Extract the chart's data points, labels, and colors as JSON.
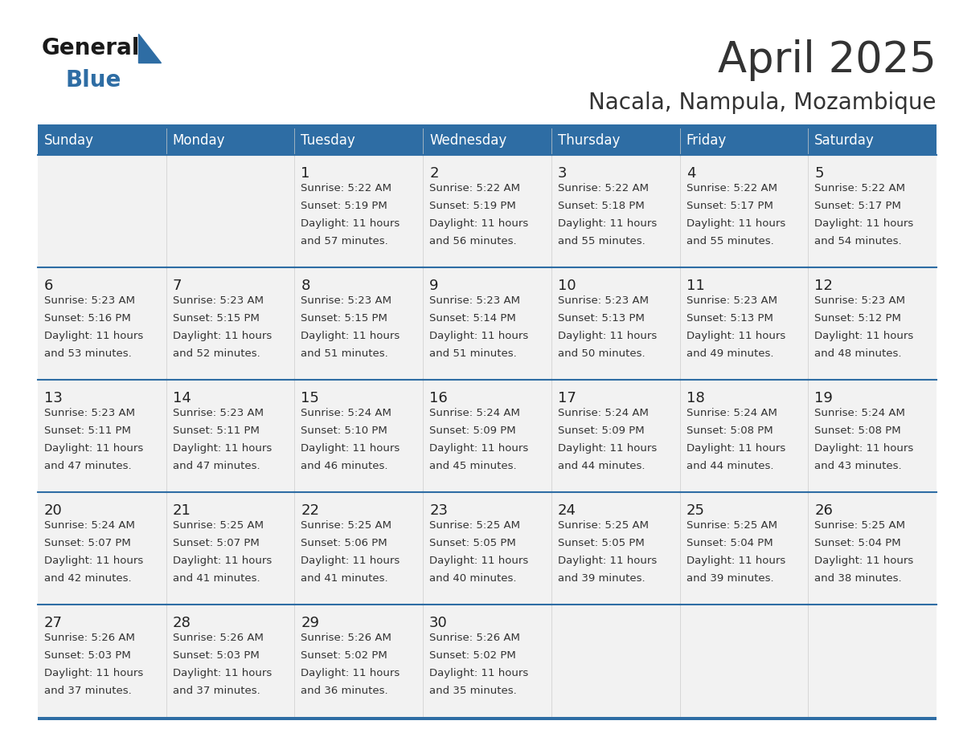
{
  "title": "April 2025",
  "subtitle": "Nacala, Nampula, Mozambique",
  "header_bg": "#2E6DA4",
  "header_text_color": "#FFFFFF",
  "cell_bg": "#F2F2F2",
  "border_color": "#2E6DA4",
  "text_color": "#333333",
  "day_number_color": "#222222",
  "logo_general_color": "#1a1a1a",
  "logo_blue_color": "#2E6DA4",
  "day_names": [
    "Sunday",
    "Monday",
    "Tuesday",
    "Wednesday",
    "Thursday",
    "Friday",
    "Saturday"
  ],
  "calendar_data": [
    [
      {
        "day": "",
        "sunrise": "",
        "sunset": "",
        "daylight": ""
      },
      {
        "day": "",
        "sunrise": "",
        "sunset": "",
        "daylight": ""
      },
      {
        "day": "1",
        "sunrise": "5:22 AM",
        "sunset": "5:19 PM",
        "daylight": "11 hours and 57 minutes."
      },
      {
        "day": "2",
        "sunrise": "5:22 AM",
        "sunset": "5:19 PM",
        "daylight": "11 hours and 56 minutes."
      },
      {
        "day": "3",
        "sunrise": "5:22 AM",
        "sunset": "5:18 PM",
        "daylight": "11 hours and 55 minutes."
      },
      {
        "day": "4",
        "sunrise": "5:22 AM",
        "sunset": "5:17 PM",
        "daylight": "11 hours and 55 minutes."
      },
      {
        "day": "5",
        "sunrise": "5:22 AM",
        "sunset": "5:17 PM",
        "daylight": "11 hours and 54 minutes."
      }
    ],
    [
      {
        "day": "6",
        "sunrise": "5:23 AM",
        "sunset": "5:16 PM",
        "daylight": "11 hours and 53 minutes."
      },
      {
        "day": "7",
        "sunrise": "5:23 AM",
        "sunset": "5:15 PM",
        "daylight": "11 hours and 52 minutes."
      },
      {
        "day": "8",
        "sunrise": "5:23 AM",
        "sunset": "5:15 PM",
        "daylight": "11 hours and 51 minutes."
      },
      {
        "day": "9",
        "sunrise": "5:23 AM",
        "sunset": "5:14 PM",
        "daylight": "11 hours and 51 minutes."
      },
      {
        "day": "10",
        "sunrise": "5:23 AM",
        "sunset": "5:13 PM",
        "daylight": "11 hours and 50 minutes."
      },
      {
        "day": "11",
        "sunrise": "5:23 AM",
        "sunset": "5:13 PM",
        "daylight": "11 hours and 49 minutes."
      },
      {
        "day": "12",
        "sunrise": "5:23 AM",
        "sunset": "5:12 PM",
        "daylight": "11 hours and 48 minutes."
      }
    ],
    [
      {
        "day": "13",
        "sunrise": "5:23 AM",
        "sunset": "5:11 PM",
        "daylight": "11 hours and 47 minutes."
      },
      {
        "day": "14",
        "sunrise": "5:23 AM",
        "sunset": "5:11 PM",
        "daylight": "11 hours and 47 minutes."
      },
      {
        "day": "15",
        "sunrise": "5:24 AM",
        "sunset": "5:10 PM",
        "daylight": "11 hours and 46 minutes."
      },
      {
        "day": "16",
        "sunrise": "5:24 AM",
        "sunset": "5:09 PM",
        "daylight": "11 hours and 45 minutes."
      },
      {
        "day": "17",
        "sunrise": "5:24 AM",
        "sunset": "5:09 PM",
        "daylight": "11 hours and 44 minutes."
      },
      {
        "day": "18",
        "sunrise": "5:24 AM",
        "sunset": "5:08 PM",
        "daylight": "11 hours and 44 minutes."
      },
      {
        "day": "19",
        "sunrise": "5:24 AM",
        "sunset": "5:08 PM",
        "daylight": "11 hours and 43 minutes."
      }
    ],
    [
      {
        "day": "20",
        "sunrise": "5:24 AM",
        "sunset": "5:07 PM",
        "daylight": "11 hours and 42 minutes."
      },
      {
        "day": "21",
        "sunrise": "5:25 AM",
        "sunset": "5:07 PM",
        "daylight": "11 hours and 41 minutes."
      },
      {
        "day": "22",
        "sunrise": "5:25 AM",
        "sunset": "5:06 PM",
        "daylight": "11 hours and 41 minutes."
      },
      {
        "day": "23",
        "sunrise": "5:25 AM",
        "sunset": "5:05 PM",
        "daylight": "11 hours and 40 minutes."
      },
      {
        "day": "24",
        "sunrise": "5:25 AM",
        "sunset": "5:05 PM",
        "daylight": "11 hours and 39 minutes."
      },
      {
        "day": "25",
        "sunrise": "5:25 AM",
        "sunset": "5:04 PM",
        "daylight": "11 hours and 39 minutes."
      },
      {
        "day": "26",
        "sunrise": "5:25 AM",
        "sunset": "5:04 PM",
        "daylight": "11 hours and 38 minutes."
      }
    ],
    [
      {
        "day": "27",
        "sunrise": "5:26 AM",
        "sunset": "5:03 PM",
        "daylight": "11 hours and 37 minutes."
      },
      {
        "day": "28",
        "sunrise": "5:26 AM",
        "sunset": "5:03 PM",
        "daylight": "11 hours and 37 minutes."
      },
      {
        "day": "29",
        "sunrise": "5:26 AM",
        "sunset": "5:02 PM",
        "daylight": "11 hours and 36 minutes."
      },
      {
        "day": "30",
        "sunrise": "5:26 AM",
        "sunset": "5:02 PM",
        "daylight": "11 hours and 35 minutes."
      },
      {
        "day": "",
        "sunrise": "",
        "sunset": "",
        "daylight": ""
      },
      {
        "day": "",
        "sunrise": "",
        "sunset": "",
        "daylight": ""
      },
      {
        "day": "",
        "sunrise": "",
        "sunset": "",
        "daylight": ""
      }
    ]
  ]
}
